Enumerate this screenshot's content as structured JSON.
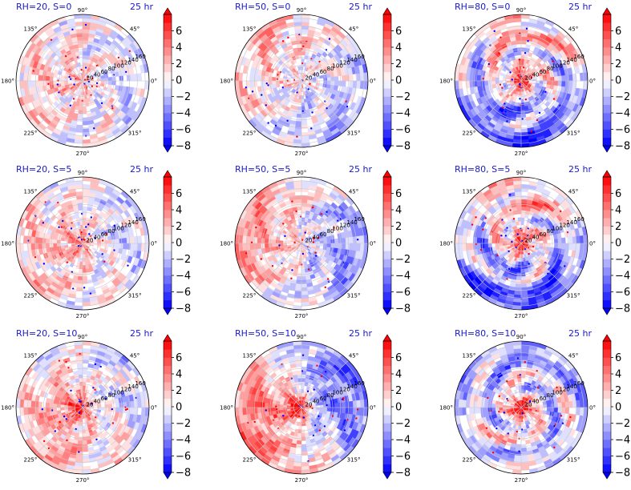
{
  "chart_data": {
    "type": "heatmap",
    "projection": "polar",
    "layout": {
      "rows": 3,
      "cols": 3
    },
    "angle_ticks": [
      "90°",
      "45°",
      "0°",
      "315°",
      "270°",
      "225°",
      "180°",
      "135°"
    ],
    "radial_ticks": [
      "20",
      "40",
      "60",
      "80",
      "100",
      "120",
      "140",
      "160"
    ],
    "radial_range": [
      0,
      170
    ],
    "colorbar": {
      "colormap": "bwr",
      "range": [
        -8,
        8
      ],
      "levels": [
        -8,
        -7,
        -6,
        -5,
        -4,
        -3,
        -2,
        -1,
        0,
        1,
        2,
        3,
        4,
        5,
        6,
        7,
        8
      ],
      "tick_labels": [
        "6",
        "4",
        "2",
        "0",
        "−2",
        "−4",
        "−6",
        "−8"
      ],
      "extend": "both"
    },
    "panels": [
      {
        "title_left": "RH=20, S=0",
        "title_right": "25 hr",
        "rh": 20,
        "s": 0,
        "core": 1.5,
        "south": 0.0
      },
      {
        "title_left": "RH=50, S=0",
        "title_right": "25 hr",
        "rh": 50,
        "s": 0,
        "core": 0.5,
        "south": -1.5
      },
      {
        "title_left": "RH=80, S=0",
        "title_right": "25 hr",
        "rh": 80,
        "s": 0,
        "core": 7.0,
        "south": -4.0
      },
      {
        "title_left": "RH=20, S=5",
        "title_right": "25 hr",
        "rh": 20,
        "s": 5,
        "core": 2.5,
        "south": 0.5
      },
      {
        "title_left": "RH=50, S=5",
        "title_right": "25 hr",
        "rh": 50,
        "s": 5,
        "core": 1.0,
        "south": -1.0
      },
      {
        "title_left": "RH=80, S=5",
        "title_right": "25 hr",
        "rh": 80,
        "s": 5,
        "core": 7.0,
        "south": -4.0
      },
      {
        "title_left": "RH=20, S=10",
        "title_right": "25 hr",
        "rh": 20,
        "s": 10,
        "core": 4.0,
        "south": 1.0
      },
      {
        "title_left": "RH=50, S=10",
        "title_right": "25 hr",
        "rh": 50,
        "s": 10,
        "core": 7.0,
        "south": 2.0
      },
      {
        "title_left": "RH=80, S=10",
        "title_right": "25 hr",
        "rh": 80,
        "s": 10,
        "core": 8.0,
        "south": 1.0
      }
    ]
  }
}
